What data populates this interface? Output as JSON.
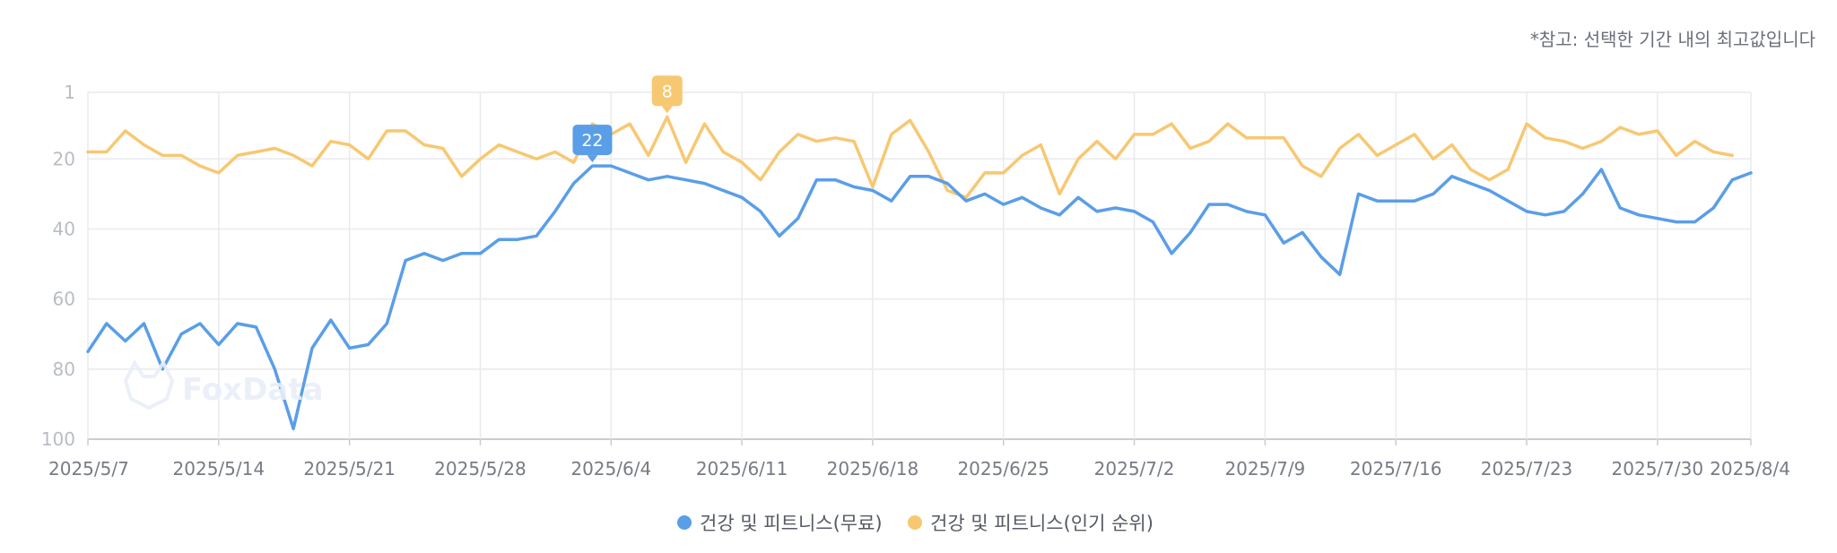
{
  "note": "*참고: 선택한 기간 내의 최고값입니다",
  "watermark": "FoxData",
  "chart_data": {
    "type": "line",
    "y_inverted": true,
    "ylim": [
      1,
      100
    ],
    "yticks": [
      "1",
      "20",
      "40",
      "60",
      "80",
      "100"
    ],
    "x_tick_labels": [
      "2025/5/7",
      "2025/5/14",
      "2025/5/21",
      "2025/5/28",
      "2025/6/4",
      "2025/6/11",
      "2025/6/18",
      "2025/6/25",
      "2025/7/2",
      "2025/7/9",
      "2025/7/16",
      "2025/7/23",
      "2025/7/30",
      "2025/8/4"
    ],
    "x_start": "2025/5/7",
    "grid": true,
    "legend_position": "bottom-center",
    "series": [
      {
        "name": "건강 및 피트니스(무료)",
        "color": "#5a9ee8",
        "peak_label": "22",
        "values": [
          75,
          67,
          72,
          67,
          80,
          70,
          67,
          73,
          67,
          68,
          80,
          97,
          74,
          66,
          74,
          73,
          67,
          49,
          47,
          49,
          47,
          47,
          43,
          43,
          42,
          35,
          27,
          22,
          22,
          24,
          26,
          25,
          26,
          27,
          29,
          31,
          35,
          42,
          37,
          26,
          26,
          28,
          29,
          32,
          25,
          25,
          27,
          32,
          30,
          33,
          31,
          34,
          36,
          31,
          35,
          34,
          35,
          38,
          47,
          41,
          33,
          33,
          35,
          36,
          44,
          41,
          48,
          53,
          30,
          32,
          32,
          32,
          30,
          25,
          27,
          29,
          32,
          35,
          36,
          35,
          30,
          23,
          34,
          36,
          37,
          38,
          38,
          34,
          26,
          24
        ]
      },
      {
        "name": "건강 및 피트니스(인기 순위)",
        "color": "#f7c872",
        "peak_label": "8",
        "values": [
          18,
          18,
          12,
          16,
          19,
          19,
          22,
          24,
          19,
          18,
          17,
          19,
          22,
          15,
          16,
          20,
          12,
          12,
          16,
          17,
          25,
          20,
          16,
          18,
          20,
          18,
          21,
          10,
          13,
          10,
          19,
          8,
          21,
          10,
          18,
          21,
          26,
          18,
          13,
          15,
          14,
          15,
          28,
          13,
          9,
          18,
          29,
          31,
          24,
          24,
          19,
          16,
          30,
          20,
          15,
          20,
          13,
          13,
          10,
          17,
          15,
          10,
          14,
          14,
          14,
          22,
          25,
          17,
          13,
          19,
          16,
          13,
          20,
          16,
          23,
          26,
          23,
          10,
          14,
          15,
          17,
          15,
          11,
          13,
          12,
          19,
          15,
          18,
          19
        ]
      }
    ]
  }
}
